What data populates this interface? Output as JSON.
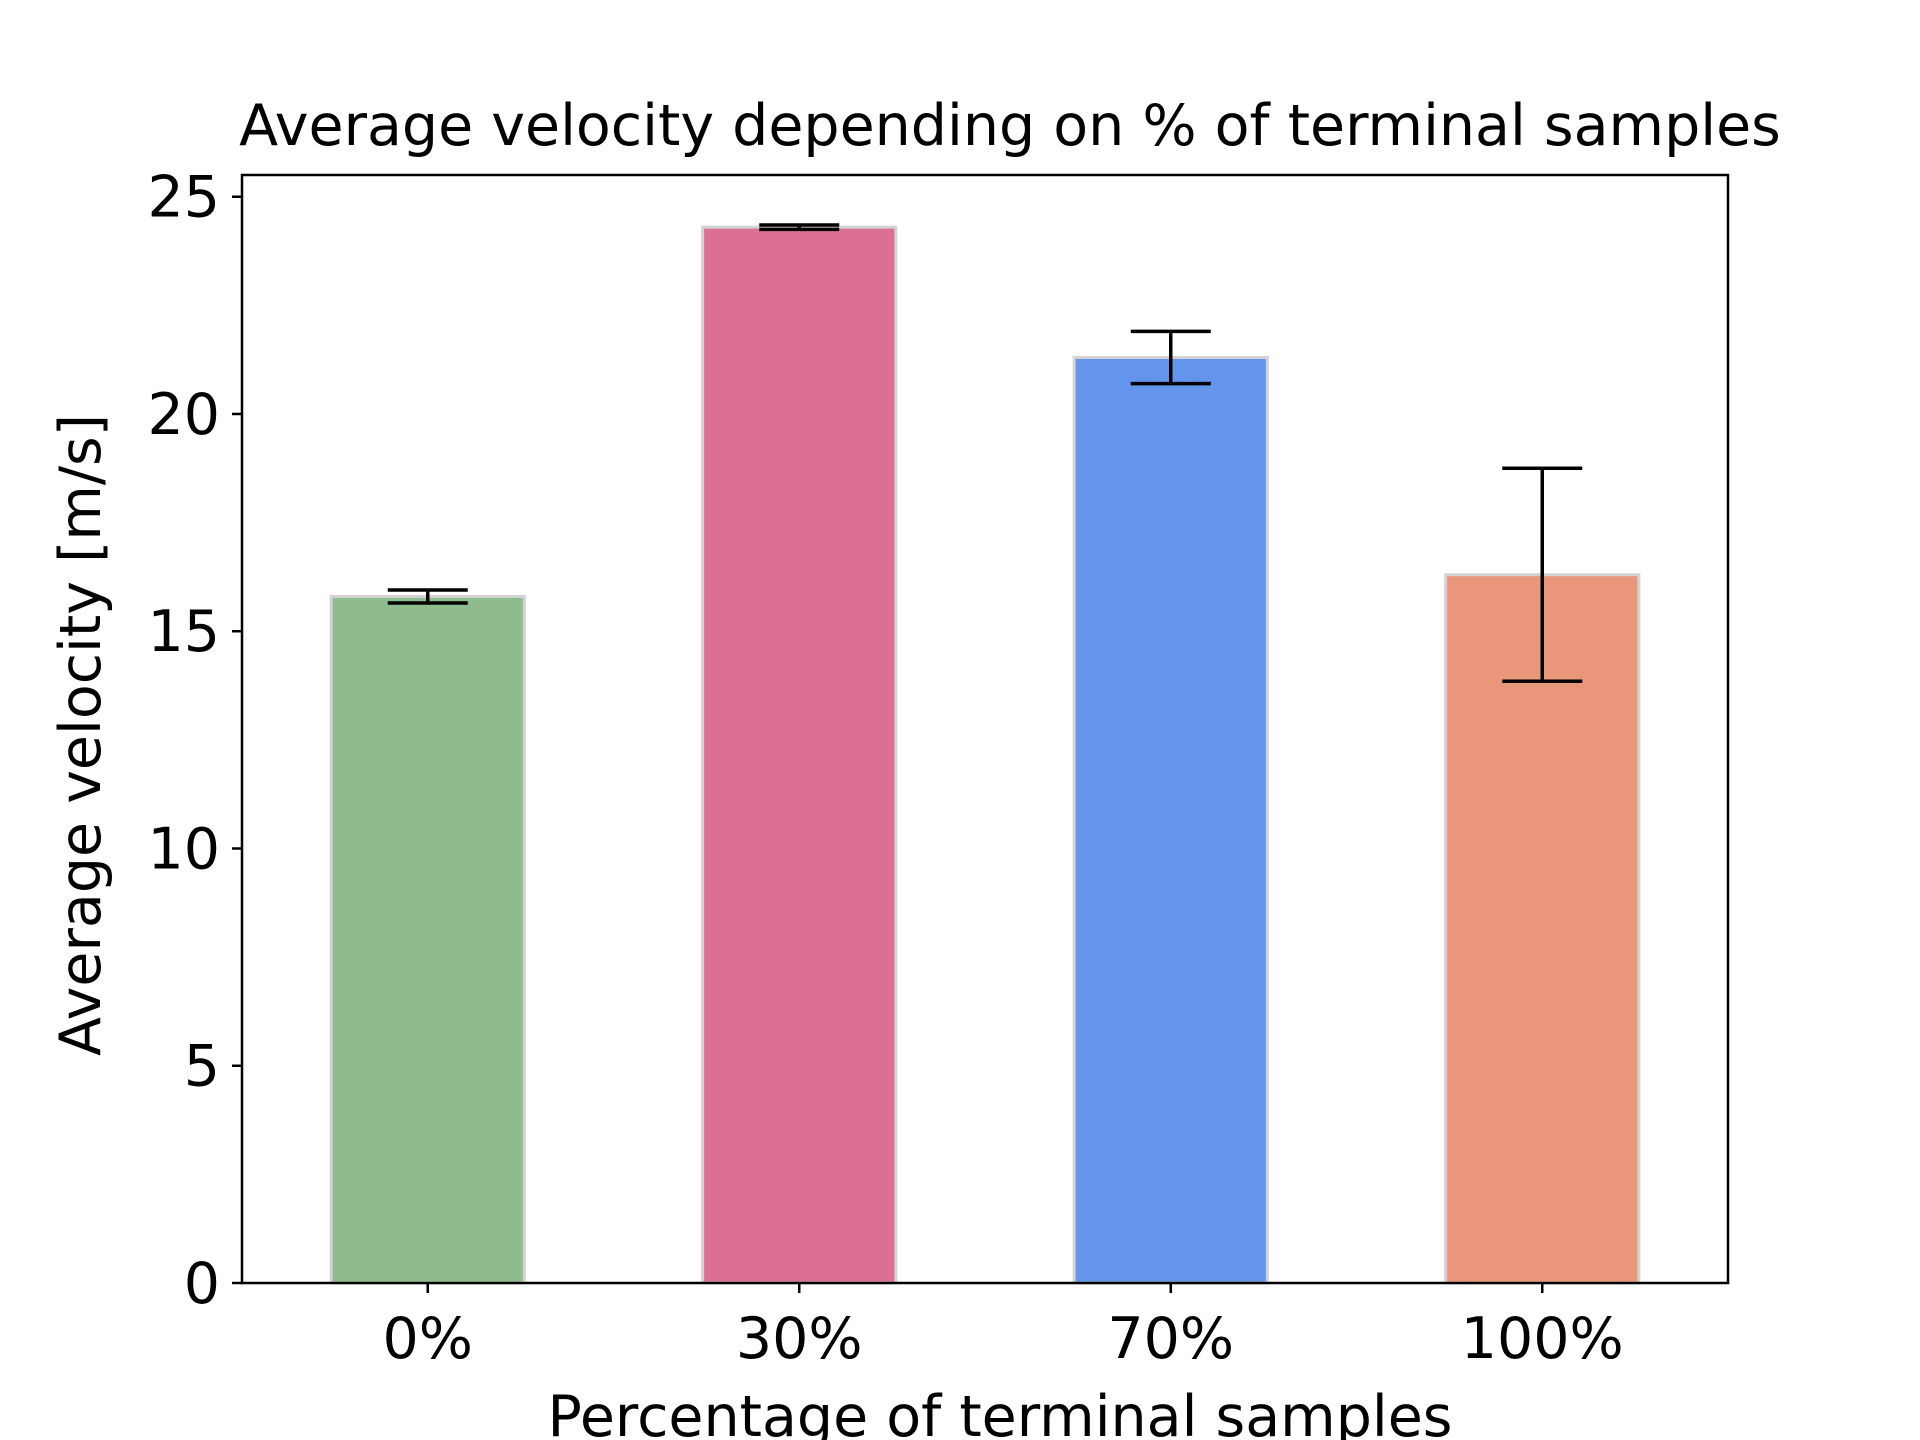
{
  "chart_data": {
    "type": "bar",
    "title": "Average velocity depending on % of terminal samples",
    "xlabel": "Percentage of terminal samples",
    "ylabel": "Average velocity [m/s]",
    "categories": [
      "0%",
      "30%",
      "70%",
      "100%"
    ],
    "values": [
      15.8,
      24.3,
      21.3,
      16.3
    ],
    "errors": [
      0.15,
      0.05,
      0.6,
      2.45
    ],
    "colors": [
      "#8fbc8f",
      "#db7093",
      "#6495ed",
      "#e9967a"
    ],
    "bar_edge_color": "#d3d3d3",
    "ylim": [
      0,
      25.5
    ],
    "yticks": [
      0,
      5,
      10,
      15,
      20,
      25
    ],
    "grid": false,
    "legend": "none"
  }
}
